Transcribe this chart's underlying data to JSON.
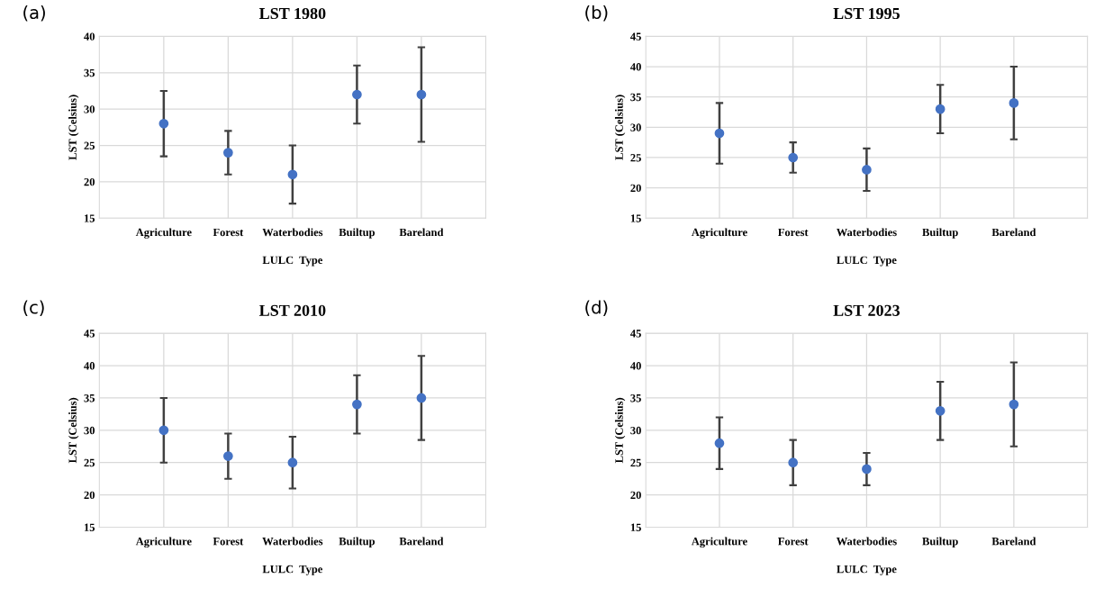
{
  "chart_data": [
    {
      "type": "scatter",
      "title": "LST 1980",
      "xlabel": "LULC  Type",
      "ylabel": "LST (Celsius)",
      "annotations": [
        "(a)"
      ],
      "categories": [
        "Agriculture",
        "Forest",
        "Waterbodies",
        "Builtup",
        "Bareland"
      ],
      "grid": true,
      "marker": "circle",
      "ylim": [
        15,
        40
      ],
      "yticks": [
        15,
        20,
        25,
        30,
        35,
        40
      ],
      "series": [
        {
          "color": "#4472c4",
          "values": [
            28,
            24,
            21,
            32,
            32
          ],
          "errors": [
            [
              23.5,
              32.5
            ],
            [
              21,
              27
            ],
            [
              17,
              25
            ],
            [
              28,
              36
            ],
            [
              25.5,
              38.5
            ]
          ]
        }
      ]
    },
    {
      "type": "scatter",
      "title": "LST 1995",
      "xlabel": "LULC  Type",
      "ylabel": "LST (Celsius)",
      "annotations": [
        "(b)"
      ],
      "categories": [
        "Agriculture",
        "Forest",
        "Waterbodies",
        "Builtup",
        "Bareland"
      ],
      "grid": true,
      "marker": "circle",
      "ylim": [
        15,
        45
      ],
      "yticks": [
        15,
        20,
        25,
        30,
        35,
        40,
        45
      ],
      "series": [
        {
          "color": "#4472c4",
          "values": [
            29,
            25,
            23,
            33,
            34
          ],
          "errors": [
            [
              24,
              34
            ],
            [
              22.5,
              27.5
            ],
            [
              19.5,
              26.5
            ],
            [
              29,
              37
            ],
            [
              28,
              40
            ]
          ]
        }
      ]
    },
    {
      "type": "scatter",
      "title": "LST 2010",
      "xlabel": "LULC  Type",
      "ylabel": "LST (Celsius)",
      "annotations": [
        "(c)"
      ],
      "categories": [
        "Agriculture",
        "Forest",
        "Waterbodies",
        "Builtup",
        "Bareland"
      ],
      "grid": true,
      "marker": "circle",
      "ylim": [
        15,
        45
      ],
      "yticks": [
        15,
        20,
        25,
        30,
        35,
        40,
        45
      ],
      "series": [
        {
          "color": "#4472c4",
          "values": [
            30,
            26,
            25,
            34,
            35
          ],
          "errors": [
            [
              25,
              35
            ],
            [
              22.5,
              29.5
            ],
            [
              21,
              29
            ],
            [
              29.5,
              38.5
            ],
            [
              28.5,
              41.5
            ]
          ]
        }
      ]
    },
    {
      "type": "scatter",
      "title": "LST 2023",
      "xlabel": "LULC  Type",
      "ylabel": "LST (Celsius)",
      "annotations": [
        "(d)"
      ],
      "categories": [
        "Agriculture",
        "Forest",
        "Waterbodies",
        "Builtup",
        "Bareland"
      ],
      "grid": true,
      "marker": "circle",
      "ylim": [
        15,
        45
      ],
      "yticks": [
        15,
        20,
        25,
        30,
        35,
        40,
        45
      ],
      "series": [
        {
          "color": "#4472c4",
          "values": [
            28,
            25,
            24,
            33,
            34
          ],
          "errors": [
            [
              24,
              32
            ],
            [
              21.5,
              28.5
            ],
            [
              21.5,
              26.5
            ],
            [
              28.5,
              37.5
            ],
            [
              27.5,
              40.5
            ]
          ]
        }
      ]
    }
  ]
}
